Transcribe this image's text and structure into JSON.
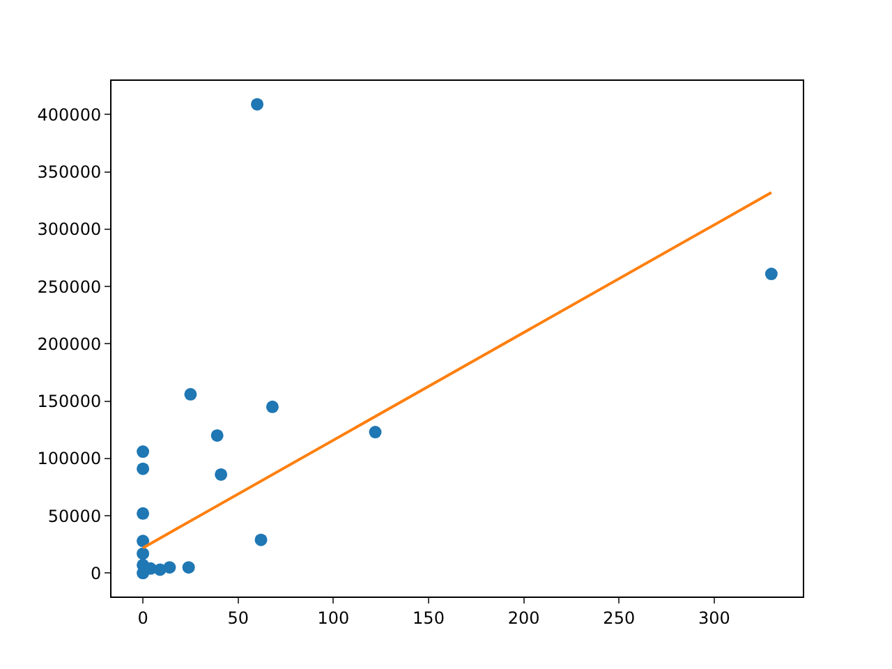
{
  "chart_data": {
    "type": "scatter",
    "xlim": [
      -16.5,
      346.5
    ],
    "ylim": [
      -20450,
      429450
    ],
    "xticks": [
      0,
      50,
      100,
      150,
      200,
      250,
      300
    ],
    "yticks": [
      0,
      50000,
      100000,
      150000,
      200000,
      250000,
      300000,
      350000,
      400000
    ],
    "marker": "circle",
    "series": [
      {
        "color": "#1f77b4",
        "x": [
          60,
          330,
          25,
          68,
          39,
          122,
          0,
          0,
          41,
          0,
          62,
          0,
          14,
          24,
          0,
          0,
          0,
          4,
          9
        ],
        "values": [
          409000,
          261000,
          156000,
          145000,
          120000,
          123000,
          106000,
          91000,
          86000,
          52000,
          29000,
          28000,
          5000,
          5000,
          17000,
          7000,
          0,
          4000,
          3000
        ]
      },
      {
        "type": "line",
        "color": "#ff7f0e",
        "x": [
          0,
          330
        ],
        "values": [
          22000,
          332000
        ],
        "marker": "none",
        "line_style": "solid"
      }
    ]
  }
}
